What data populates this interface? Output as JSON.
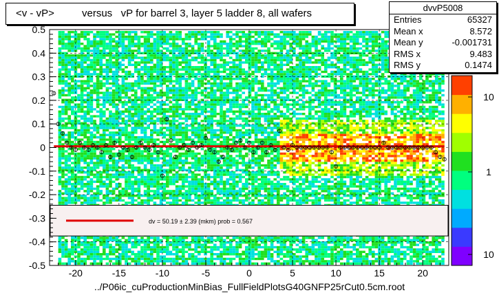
{
  "title": {
    "part1": "<v - vP>",
    "part2": "versus   vP for barrel 3, layer 5 ladder 8, all wafers"
  },
  "stats": {
    "name": "dvvP5008",
    "rows": [
      {
        "label": "Entries",
        "value": "65327"
      },
      {
        "label": "Mean x",
        "value": "8.572"
      },
      {
        "label": "Mean y",
        "value": "-0.001731"
      },
      {
        "label": "RMS x",
        "value": "9.483"
      },
      {
        "label": "RMS y",
        "value": "0.1474"
      }
    ]
  },
  "footer": "../P06ic_cuProductionMinBias_FullFieldPlotsG40GNFP25rCut0.5cm.root",
  "fit_legend": "dv =    50.19 ±   2.39 (mkm) prob = 0.567",
  "colors": {
    "fit_line": "#e00000",
    "palette": [
      "#7f00ff",
      "#3a3aff",
      "#00aaff",
      "#00e0e0",
      "#00ff7f",
      "#20e020",
      "#a0ff00",
      "#ffff00",
      "#ffb000",
      "#ff4000"
    ]
  },
  "chart_data": {
    "type": "heatmap",
    "xlim": [
      -23,
      23
    ],
    "ylim": [
      -0.5,
      0.5
    ],
    "x_ticks": [
      -20,
      -15,
      -10,
      -5,
      0,
      5,
      10,
      15,
      20
    ],
    "y_ticks": [
      -0.5,
      -0.4,
      -0.3,
      -0.2,
      -0.1,
      0,
      0.1,
      0.2,
      0.3,
      0.4,
      0.5
    ],
    "color_scale": {
      "log": true,
      "tick_labels": [
        "10",
        "1",
        "10"
      ]
    },
    "grid": true,
    "profile_points": [
      [
        -22.5,
        0.23
      ],
      [
        -22,
        0.1
      ],
      [
        -21.5,
        0.06
      ],
      [
        -21,
        0.02
      ],
      [
        -20.5,
        0.0
      ],
      [
        -20,
        -0.01
      ],
      [
        -19.5,
        0.02
      ],
      [
        -19,
        0.0
      ],
      [
        -18.5,
        -0.01
      ],
      [
        -18,
        0.01
      ],
      [
        -17.5,
        0.0
      ],
      [
        -17,
        -0.02
      ],
      [
        -16.5,
        0.01
      ],
      [
        -16,
        -0.04
      ],
      [
        -15.5,
        0.02
      ],
      [
        -15,
        -0.03
      ],
      [
        -14.5,
        0.0
      ],
      [
        -14,
        -0.01
      ],
      [
        -13.5,
        -0.04
      ],
      [
        -13,
        0.0
      ],
      [
        -12.5,
        0.02
      ],
      [
        -12,
        0.0
      ],
      [
        -11.5,
        -0.01
      ],
      [
        -11,
        0.01
      ],
      [
        -10.5,
        -0.02
      ],
      [
        -10,
        -0.12
      ],
      [
        -9.5,
        0.12
      ],
      [
        -9,
        0.03
      ],
      [
        -8.5,
        -0.04
      ],
      [
        -8,
        0.0
      ],
      [
        -7.5,
        0.01
      ],
      [
        -7,
        -0.01
      ],
      [
        -6.5,
        0.02
      ],
      [
        -6,
        0.0
      ],
      [
        -5.5,
        0.01
      ],
      [
        -5,
        0.04
      ],
      [
        -4.5,
        -0.01
      ],
      [
        -4,
        -0.02
      ],
      [
        -3.5,
        -0.06
      ],
      [
        -3,
        -0.04
      ],
      [
        -2.5,
        0.0
      ],
      [
        -2,
        -0.01
      ],
      [
        -1.5,
        0.02
      ],
      [
        -1,
        0.03
      ],
      [
        -0.5,
        0.0
      ],
      [
        0,
        0.02
      ],
      [
        0.5,
        -0.02
      ],
      [
        1,
        0.0
      ],
      [
        1.5,
        0.02
      ],
      [
        2,
        -0.02
      ],
      [
        2.5,
        0.01
      ],
      [
        3,
        -0.01
      ],
      [
        3.5,
        0.07
      ],
      [
        4,
        0.0
      ],
      [
        4.5,
        -0.01
      ],
      [
        5,
        0.01
      ],
      [
        5.5,
        0.0
      ],
      [
        6,
        0.0
      ],
      [
        6.5,
        0.0
      ],
      [
        7,
        0.0
      ],
      [
        7.5,
        0.0
      ],
      [
        8,
        0.0
      ],
      [
        8.5,
        0.0
      ],
      [
        9,
        0.0
      ],
      [
        9.5,
        -0.02
      ],
      [
        10,
        -0.08
      ],
      [
        10.5,
        0.0
      ],
      [
        11,
        0.0
      ],
      [
        11.5,
        0.0
      ],
      [
        12,
        0.0
      ],
      [
        12.5,
        0.0
      ],
      [
        13,
        0.0
      ],
      [
        13.5,
        0.0
      ],
      [
        14,
        0.0
      ],
      [
        14.5,
        0.0
      ],
      [
        15,
        0.0
      ],
      [
        15.5,
        0.02
      ],
      [
        16,
        0.0
      ],
      [
        16.5,
        0.0
      ],
      [
        17,
        0.0
      ],
      [
        17.5,
        0.0
      ],
      [
        18,
        0.0
      ],
      [
        18.5,
        0.0
      ],
      [
        19,
        0.0
      ],
      [
        19.5,
        0.0
      ],
      [
        20,
        0.0
      ],
      [
        20.5,
        0.0
      ],
      [
        21,
        0.0
      ],
      [
        21.5,
        -0.02
      ],
      [
        22,
        -0.04
      ],
      [
        22.5,
        -0.05
      ]
    ],
    "fit": {
      "x": [
        -22.5,
        22.5
      ],
      "y": [
        0.005,
        0.005
      ]
    }
  }
}
